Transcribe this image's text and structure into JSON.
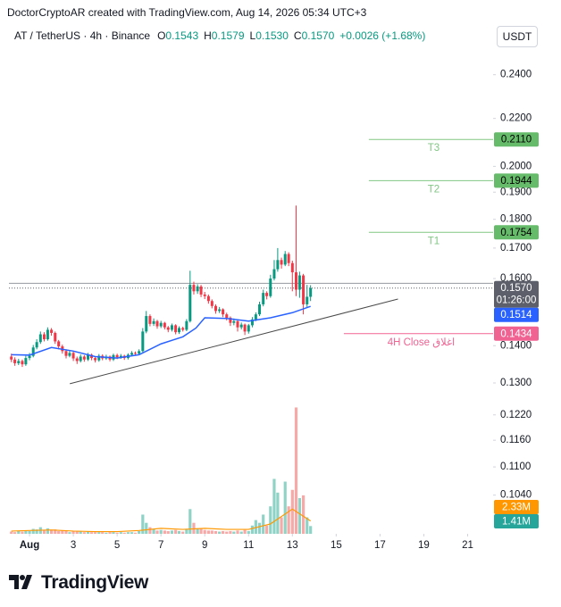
{
  "watermark": "DoctorCryptoAR created with TradingView.com, Aug 14, 2026 05:34 UTC+3",
  "footer": {
    "brand": "TradingView"
  },
  "chart_data": {
    "type": "candlestick",
    "symbol": "AT / TetherUS · 4h · Binance",
    "ohlc_legend": [
      {
        "name": "O",
        "label": "0.1543"
      },
      {
        "name": "H",
        "label": "0.1579"
      },
      {
        "name": "L",
        "label": "0.1530"
      },
      {
        "name": "C",
        "label": "0.1570"
      }
    ],
    "change": "+0.0026 (+1.68%)",
    "currency": "USDT",
    "log_scale": true,
    "up_color": "#089981",
    "down_color": "#f23645",
    "xlim": [
      0.06,
      22.0
    ],
    "xticks": [
      {
        "value": 1,
        "label": "Aug"
      },
      3,
      5,
      7,
      9,
      11,
      13,
      15,
      17,
      19,
      21
    ],
    "ylim": [
      0.0963,
      0.264
    ],
    "yticks": [
      {
        "value": 0.24,
        "label": "0.2400"
      },
      {
        "value": 0.22,
        "label": "0.2200"
      },
      {
        "value": 0.2,
        "label": "0.2000"
      },
      {
        "value": 0.19,
        "label": "0.1900"
      },
      {
        "value": 0.18,
        "label": "0.1800"
      },
      {
        "value": 0.17,
        "label": "0.1700"
      },
      {
        "value": 0.16,
        "label": "0.1600"
      },
      {
        "value": 0.14,
        "label": "0.1400"
      },
      {
        "value": 0.13,
        "label": "0.1300"
      },
      {
        "value": 0.122,
        "label": "0.1220"
      },
      {
        "value": 0.116,
        "label": "0.1160"
      },
      {
        "value": 0.11,
        "label": "0.1100"
      },
      {
        "value": 0.104,
        "label": "0.1040"
      }
    ],
    "x": [
      0.17,
      0.33,
      0.5,
      0.67,
      0.83,
      1,
      1.17,
      1.33,
      1.5,
      1.67,
      1.83,
      2,
      2.17,
      2.33,
      2.5,
      2.67,
      2.83,
      3,
      3.17,
      3.33,
      3.5,
      3.67,
      3.83,
      4,
      4.17,
      4.33,
      4.5,
      4.67,
      4.83,
      5,
      5.17,
      5.33,
      5.5,
      5.67,
      5.83,
      6,
      6.17,
      6.33,
      6.5,
      6.67,
      6.83,
      7,
      7.17,
      7.33,
      7.5,
      7.67,
      7.83,
      8,
      8.17,
      8.33,
      8.5,
      8.67,
      8.83,
      9,
      9.17,
      9.33,
      9.5,
      9.67,
      9.83,
      10,
      10.17,
      10.33,
      10.5,
      10.67,
      10.83,
      11,
      11.17,
      11.33,
      11.5,
      11.67,
      11.83,
      12,
      12.17,
      12.33,
      12.5,
      12.67,
      12.83,
      13,
      13.17,
      13.33,
      13.5,
      13.67,
      13.83
    ],
    "open": [
      0.137,
      0.1362,
      0.1352,
      0.1358,
      0.1349,
      0.1366,
      0.1372,
      0.1395,
      0.141,
      0.1432,
      0.1418,
      0.1445,
      0.1436,
      0.1412,
      0.1398,
      0.1385,
      0.1372,
      0.138,
      0.1365,
      0.1358,
      0.137,
      0.1362,
      0.1375,
      0.1366,
      0.136,
      0.1372,
      0.1365,
      0.137,
      0.1362,
      0.1374,
      0.1368,
      0.1372,
      0.1366,
      0.1375,
      0.138,
      0.1378,
      0.1385,
      0.144,
      0.1485,
      0.1462,
      0.147,
      0.1455,
      0.1465,
      0.1452,
      0.1445,
      0.1458,
      0.1438,
      0.145,
      0.1445,
      0.147,
      0.158,
      0.156,
      0.1575,
      0.155,
      0.1545,
      0.153,
      0.1515,
      0.15,
      0.1505,
      0.149,
      0.148,
      0.1465,
      0.147,
      0.1452,
      0.146,
      0.144,
      0.1458,
      0.1475,
      0.149,
      0.152,
      0.1555,
      0.1545,
      0.16,
      0.163,
      0.166,
      0.1645,
      0.168,
      0.165,
      0.162,
      0.1565,
      0.161,
      0.152,
      0.1543
    ],
    "high": [
      0.1378,
      0.1368,
      0.1364,
      0.1362,
      0.1372,
      0.138,
      0.1402,
      0.1418,
      0.144,
      0.1438,
      0.1452,
      0.145,
      0.144,
      0.1416,
      0.1403,
      0.139,
      0.1386,
      0.1384,
      0.137,
      0.1376,
      0.1374,
      0.138,
      0.1378,
      0.137,
      0.1377,
      0.1376,
      0.1375,
      0.1373,
      0.1378,
      0.1378,
      0.1377,
      0.1375,
      0.1379,
      0.1385,
      0.1384,
      0.139,
      0.145,
      0.15,
      0.149,
      0.1478,
      0.1474,
      0.1471,
      0.1468,
      0.1456,
      0.1463,
      0.1461,
      0.1455,
      0.1454,
      0.1476,
      0.1625,
      0.159,
      0.1582,
      0.158,
      0.1558,
      0.155,
      0.1535,
      0.152,
      0.1512,
      0.1508,
      0.1495,
      0.1484,
      0.1478,
      0.1474,
      0.1466,
      0.1463,
      0.1462,
      0.1482,
      0.1496,
      0.1528,
      0.1565,
      0.156,
      0.1612,
      0.166,
      0.17,
      0.1668,
      0.169,
      0.1686,
      0.1658,
      0.185,
      0.1622,
      0.1615,
      0.158,
      0.1579
    ],
    "low": [
      0.1355,
      0.1345,
      0.1347,
      0.1342,
      0.1345,
      0.136,
      0.1368,
      0.139,
      0.1405,
      0.1412,
      0.1414,
      0.1428,
      0.1405,
      0.139,
      0.1378,
      0.1365,
      0.1368,
      0.1358,
      0.135,
      0.1354,
      0.1356,
      0.1358,
      0.136,
      0.1354,
      0.1356,
      0.136,
      0.1361,
      0.1357,
      0.1358,
      0.1363,
      0.1364,
      0.1361,
      0.1362,
      0.1371,
      0.1373,
      0.1374,
      0.1382,
      0.1435,
      0.1455,
      0.1456,
      0.1448,
      0.145,
      0.1446,
      0.1438,
      0.144,
      0.1432,
      0.1433,
      0.144,
      0.1441,
      0.1466,
      0.155,
      0.1552,
      0.1542,
      0.1536,
      0.1522,
      0.1508,
      0.1492,
      0.1494,
      0.1482,
      0.1472,
      0.1456,
      0.1458,
      0.144,
      0.1446,
      0.143,
      0.1434,
      0.1452,
      0.147,
      0.1485,
      0.1514,
      0.1535,
      0.154,
      0.1594,
      0.1622,
      0.1632,
      0.164,
      0.164,
      0.156,
      0.1545,
      0.154,
      0.149,
      0.1512,
      0.153
    ],
    "close": [
      0.1362,
      0.1352,
      0.1358,
      0.1349,
      0.1366,
      0.1372,
      0.1395,
      0.141,
      0.1432,
      0.1418,
      0.1445,
      0.1436,
      0.1412,
      0.1398,
      0.1385,
      0.1372,
      0.138,
      0.1365,
      0.1358,
      0.137,
      0.1362,
      0.1375,
      0.1366,
      0.136,
      0.1372,
      0.1365,
      0.137,
      0.1362,
      0.1374,
      0.1368,
      0.1372,
      0.1366,
      0.1375,
      0.138,
      0.1378,
      0.1385,
      0.144,
      0.1485,
      0.1462,
      0.147,
      0.1455,
      0.1465,
      0.1452,
      0.1445,
      0.1458,
      0.1438,
      0.145,
      0.1445,
      0.147,
      0.158,
      0.156,
      0.1575,
      0.155,
      0.1545,
      0.153,
      0.1515,
      0.15,
      0.1505,
      0.149,
      0.148,
      0.1465,
      0.147,
      0.1452,
      0.146,
      0.144,
      0.1458,
      0.1475,
      0.149,
      0.152,
      0.1555,
      0.1545,
      0.16,
      0.163,
      0.166,
      0.1645,
      0.168,
      0.165,
      0.162,
      0.1565,
      0.161,
      0.152,
      0.1543,
      0.157
    ],
    "volume": {
      "values": [
        0.4,
        0.3,
        0.5,
        0.4,
        0.6,
        0.5,
        0.9,
        0.8,
        1.2,
        0.6,
        1.0,
        0.7,
        0.8,
        0.5,
        0.6,
        0.5,
        0.3,
        0.5,
        0.4,
        0.4,
        0.3,
        0.4,
        0.3,
        0.3,
        0.3,
        0.3,
        0.2,
        0.3,
        0.3,
        0.2,
        0.3,
        0.2,
        0.3,
        0.3,
        0.2,
        0.5,
        3.5,
        2.0,
        1.2,
        0.8,
        0.6,
        0.7,
        0.6,
        0.5,
        0.6,
        0.7,
        0.5,
        0.4,
        0.8,
        4.5,
        2.0,
        1.0,
        0.9,
        0.7,
        0.6,
        0.6,
        0.5,
        0.4,
        0.5,
        0.4,
        0.5,
        0.4,
        0.6,
        0.4,
        0.7,
        0.5,
        1.5,
        2.5,
        2.0,
        3.5,
        1.5,
        5.0,
        10.0,
        7.5,
        3.0,
        9.5,
        5.0,
        8.0,
        23.0,
        6.5,
        7.0,
        3.0,
        1.41
      ],
      "ylim": [
        0,
        26
      ],
      "up_color": "#8fd3c7",
      "down_color": "#f7a9a7",
      "last_label": "1.41M",
      "label_color": "#26a69a"
    },
    "volume_ma": {
      "x": [
        0.17,
        1,
        2,
        3,
        4,
        5,
        6,
        7,
        8,
        9,
        10,
        11,
        12,
        13,
        13.83
      ],
      "values": [
        0.5,
        0.6,
        0.7,
        0.5,
        0.4,
        0.4,
        0.6,
        1.0,
        0.8,
        1.0,
        0.8,
        0.8,
        1.8,
        4.5,
        2.33
      ],
      "color": "#ff9800",
      "last_label": "2.33M"
    },
    "price_ma": {
      "x": [
        0.17,
        1,
        2,
        3,
        4,
        5,
        6,
        7,
        8,
        8.6,
        9,
        10,
        11,
        12,
        13,
        13.83
      ],
      "values": [
        0.1375,
        0.1374,
        0.1395,
        0.1385,
        0.137,
        0.1366,
        0.1375,
        0.1405,
        0.1425,
        0.145,
        0.148,
        0.1478,
        0.147,
        0.148,
        0.1495,
        0.1514
      ],
      "color": "#2962ff",
      "last_label": "0.1514"
    },
    "last_price": {
      "value": 0.157,
      "label": "0.1570",
      "countdown": "01:26:00",
      "color": "#5d606b"
    },
    "hline": {
      "value": 0.1585,
      "color": "#9598a1"
    },
    "trendline": {
      "x": [
        2.84,
        17.82
      ],
      "y": [
        0.1298,
        0.1536
      ],
      "color": "#4a4a4a"
    },
    "levels": [
      {
        "name": "T3",
        "value": 0.211,
        "label": "0.2110",
        "x_start": 16.49,
        "color": "#81c784",
        "box_color": "#66bb6a"
      },
      {
        "name": "T2",
        "value": 0.1944,
        "label": "0.1944",
        "x_start": 16.49,
        "color": "#81c784",
        "box_color": "#66bb6a"
      },
      {
        "name": "T1",
        "value": 0.1754,
        "label": "0.1754",
        "x_start": 16.49,
        "color": "#81c784",
        "box_color": "#66bb6a"
      },
      {
        "name": "4H Close اغلاق",
        "value": 0.1434,
        "label": "0.1434",
        "x_start": 15.35,
        "color": "#f06292",
        "box_color": "#f06292"
      }
    ]
  }
}
